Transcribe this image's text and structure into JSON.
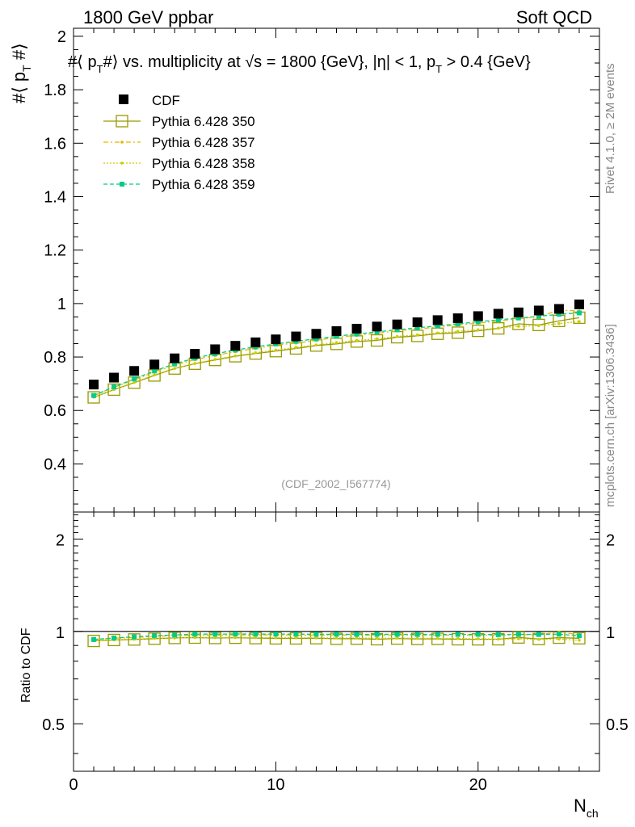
{
  "header": {
    "left_label": "1800 GeV ppbar",
    "right_label": "Soft QCD"
  },
  "side_labels": {
    "rivet": "Rivet 4.1.0, ≥ 2M events",
    "mcplots": "mcplots.cern.ch [arXiv:1306.3436]"
  },
  "chart_data": {
    "type": "scatter",
    "title": "#⟨ p_T #⟩ vs. multiplicity at √s = 1800 {GeV}, |η| < 1, p_T > 0.4 {GeV}",
    "title_parts": {
      "a": "#⟨ p",
      "a_sub": "T",
      "b": "#⟩ vs. multiplicity at ",
      "sqrt": "√",
      "c": "s = 1800 {GeV}, |η| < 1, p",
      "c_sub": "T",
      "d": " > 0.4 {GeV}"
    },
    "ylabel": "#⟨ p_T #⟩",
    "ylabel_parts": {
      "pre": "#⟨ p",
      "sub": "T",
      "post": " #⟩"
    },
    "xlabel": "N_ch",
    "xlabel_parts": {
      "main": "N",
      "sub": "ch"
    },
    "ratio_ylabel": "Ratio to CDF",
    "analysis_id": "(CDF_2002_I567774)",
    "xlim": [
      0,
      26
    ],
    "ylim": [
      0.22,
      2.03
    ],
    "ratio_ylim": [
      0.35,
      2.45
    ],
    "x_ticks": [
      0,
      10,
      20
    ],
    "x_tick_labels": [
      "0",
      "10",
      "20"
    ],
    "y_ticks": [
      0.4,
      0.6,
      0.8,
      1,
      1.2,
      1.4,
      1.6,
      1.8,
      2
    ],
    "y_tick_labels": [
      "0.4",
      "0.6",
      "0.8",
      "1",
      "1.2",
      "1.4",
      "1.6",
      "1.8",
      "2"
    ],
    "ratio_ticks": [
      0.5,
      1,
      2
    ],
    "ratio_tick_labels": [
      "0.5",
      "1",
      "2"
    ],
    "ratio_right_labels": [
      "0.5",
      "1",
      "2"
    ],
    "x": [
      1,
      2,
      3,
      4,
      5,
      6,
      7,
      8,
      9,
      10,
      11,
      12,
      13,
      14,
      15,
      16,
      17,
      18,
      19,
      20,
      21,
      22,
      23,
      24,
      25
    ],
    "series": [
      {
        "name": "CDF",
        "legend": "CDF",
        "color": "#000000",
        "values": [
          0.697,
          0.723,
          0.748,
          0.772,
          0.795,
          0.812,
          0.829,
          0.842,
          0.855,
          0.866,
          0.877,
          0.887,
          0.897,
          0.906,
          0.914,
          0.922,
          0.93,
          0.938,
          0.945,
          0.953,
          0.962,
          0.967,
          0.974,
          0.98,
          0.997
        ]
      },
      {
        "name": "Pythia 6.428 350",
        "legend": "Pythia 6.428 350",
        "color": "#999900",
        "values": [
          0.649,
          0.678,
          0.704,
          0.731,
          0.757,
          0.775,
          0.789,
          0.803,
          0.813,
          0.822,
          0.832,
          0.843,
          0.849,
          0.858,
          0.862,
          0.874,
          0.879,
          0.887,
          0.891,
          0.898,
          0.907,
          0.924,
          0.92,
          0.935,
          0.947
        ]
      },
      {
        "name": "Pythia 6.428 357",
        "legend": "Pythia 6.428 357",
        "color": "#e6b800",
        "values": [
          0.656,
          0.687,
          0.714,
          0.744,
          0.77,
          0.79,
          0.806,
          0.82,
          0.832,
          0.845,
          0.852,
          0.862,
          0.874,
          0.881,
          0.889,
          0.898,
          0.905,
          0.912,
          0.92,
          0.927,
          0.934,
          0.944,
          0.95,
          0.976,
          0.972
        ]
      },
      {
        "name": "Pythia 6.428 358",
        "legend": "Pythia 6.428 358",
        "color": "#cccc00",
        "values": [
          0.65,
          0.678,
          0.705,
          0.733,
          0.757,
          0.776,
          0.791,
          0.804,
          0.816,
          0.826,
          0.836,
          0.845,
          0.854,
          0.862,
          0.868,
          0.877,
          0.883,
          0.89,
          0.896,
          0.902,
          0.908,
          0.915,
          0.917,
          0.925,
          0.933
        ]
      },
      {
        "name": "Pythia 6.428 359",
        "legend": "Pythia 6.428 359",
        "color": "#00cc88",
        "values": [
          0.656,
          0.688,
          0.718,
          0.748,
          0.774,
          0.796,
          0.812,
          0.826,
          0.838,
          0.849,
          0.859,
          0.868,
          0.878,
          0.886,
          0.894,
          0.902,
          0.909,
          0.917,
          0.924,
          0.932,
          0.939,
          0.946,
          0.952,
          0.96,
          0.965
        ]
      }
    ]
  }
}
